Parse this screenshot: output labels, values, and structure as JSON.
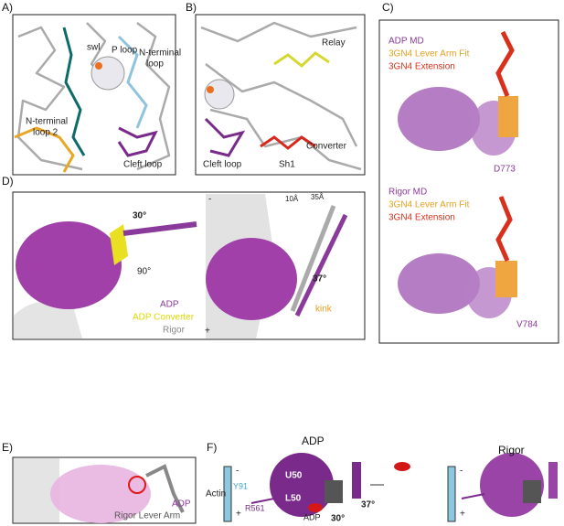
{
  "panels": {
    "a": {
      "label": "A)",
      "swl": "swl",
      "p_loop": "P loop",
      "n_terminal_loop": [
        "N-terminal",
        "loop"
      ],
      "n_terminal_loop_2": [
        "N-terminal",
        "loop 2"
      ],
      "cleft_loop": "Cleft loop"
    },
    "b": {
      "label": "B)",
      "relay": "Relay",
      "sh1": "Sh1",
      "converter": "Converter",
      "cleft_loop": "Cleft loop"
    },
    "c": {
      "label": "C)",
      "top": {
        "legend": [
          "ADP MD",
          "3GN4 Lever Arm Fit",
          "3GN4 Extension"
        ],
        "residue": "D773"
      },
      "bottom": {
        "legend": [
          "Rigor MD",
          "3GN4 Lever Arm Fit",
          "3GN4 Extension"
        ],
        "residue": "V784"
      }
    },
    "d": {
      "label": "D)",
      "angle_top": "30°",
      "rotation": "90°",
      "legend": [
        "ADP",
        "ADP Converter",
        "Rigor"
      ],
      "minus": "-",
      "plus": "+",
      "dist_1": "10Å",
      "dist_2": "35Å",
      "angle_right": "37°",
      "kink": "kink"
    },
    "e": {
      "label": "E)",
      "legend": [
        "ADP",
        "Rigor Lever Arm"
      ]
    },
    "f": {
      "label": "F)",
      "adp_title": "ADP",
      "rigor_title": "Rigor",
      "actin": "Actin",
      "minus": "-",
      "plus": "+",
      "u50": "U50",
      "l50": "L50",
      "y91": "Y91",
      "r561": "R561",
      "adp_site": "ADP",
      "angle_37": "37°",
      "angle_30": "30°",
      "minus_2": "-",
      "plus_2": "+"
    }
  }
}
